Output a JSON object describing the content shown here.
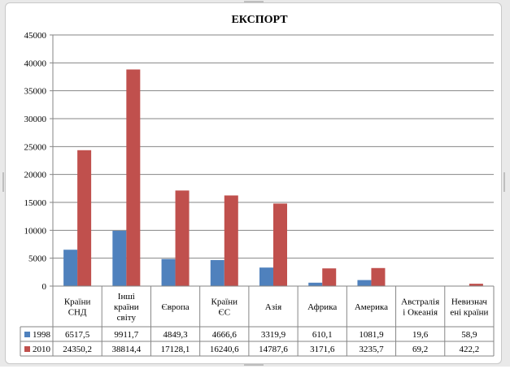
{
  "chart_data": {
    "type": "bar",
    "title": "ЕКСПОРТ",
    "categories": [
      [
        "Країни",
        "СНД"
      ],
      [
        "Інші",
        "країни",
        "світу"
      ],
      [
        "Європа"
      ],
      [
        "Країни",
        "ЄС"
      ],
      [
        "Азія"
      ],
      [
        "Африка"
      ],
      [
        "Америка"
      ],
      [
        "Австралія",
        "і Океанія"
      ],
      [
        "Невизнач",
        "ені країни"
      ]
    ],
    "series": [
      {
        "name": "1998",
        "color": "#4f81bd",
        "values": [
          6517.5,
          9911.7,
          4849.3,
          4666.6,
          3319.9,
          610.1,
          1081.9,
          19.6,
          58.9
        ],
        "labels": [
          "6517,5",
          "9911,7",
          "4849,3",
          "4666,6",
          "3319,9",
          "610,1",
          "1081,9",
          "19,6",
          "58,9"
        ]
      },
      {
        "name": "2010",
        "color": "#c0504d",
        "values": [
          24350.2,
          38814.4,
          17128.1,
          16240.6,
          14787.6,
          3171.6,
          3235.7,
          69.2,
          422.2
        ],
        "labels": [
          "24350,2",
          "38814,4",
          "17128,1",
          "16240,6",
          "14787,6",
          "3171,6",
          "3235,7",
          "69,2",
          "422,2"
        ]
      }
    ],
    "ylim": [
      0,
      45000
    ],
    "yticks": [
      "0",
      "5000",
      "10000",
      "15000",
      "20000",
      "25000",
      "30000",
      "35000",
      "40000",
      "45000"
    ],
    "grid": true,
    "legend": "data-table"
  }
}
